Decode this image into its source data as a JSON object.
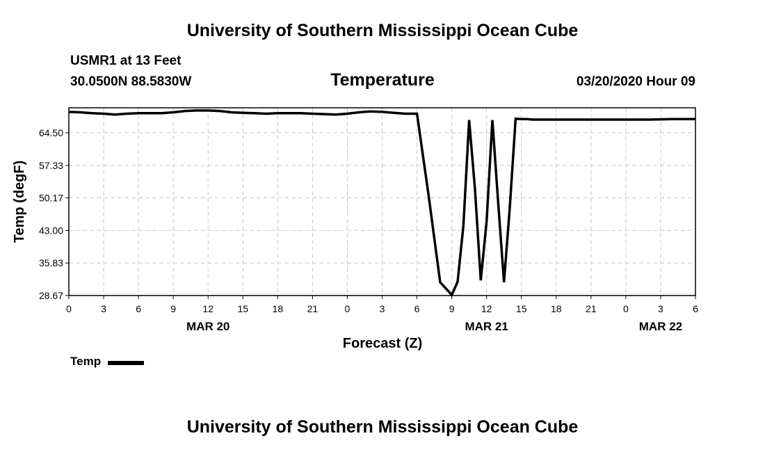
{
  "header": {
    "title": "University of Southern Mississippi Ocean Cube",
    "station": "USMR1 at 13 Feet",
    "coords": "30.0500N 88.5830W",
    "variable": "Temperature",
    "datetime": "03/20/2020 Hour 09"
  },
  "footer": {
    "title": "University of Southern Mississippi Ocean Cube"
  },
  "legend": {
    "label": "Temp"
  },
  "chart_data": {
    "type": "line",
    "ylabel": "Temp (degF)",
    "xlabel": "Forecast (Z)",
    "ylim": [
      28.67,
      70.0
    ],
    "yticks": [
      "28.67",
      "35.83",
      "43.00",
      "50.17",
      "57.33",
      "64.50"
    ],
    "xlim": [
      0,
      54
    ],
    "xtick_labels": [
      "0",
      "3",
      "6",
      "9",
      "12",
      "15",
      "18",
      "21",
      "0",
      "3",
      "6",
      "9",
      "12",
      "15",
      "18",
      "21",
      "0",
      "3",
      "6"
    ],
    "date_labels": [
      {
        "label": "MAR 20",
        "hour": 12
      },
      {
        "label": "MAR 21",
        "hour": 36
      },
      {
        "label": "MAR 22",
        "hour": 51
      }
    ],
    "grid": true,
    "legend_position": "bottom-left",
    "series": [
      {
        "name": "Temp",
        "color": "#000000",
        "x": [
          0,
          1,
          2,
          3,
          4,
          5,
          6,
          7,
          8,
          9,
          10,
          11,
          12,
          13,
          14,
          15,
          16,
          17,
          18,
          19,
          20,
          21,
          22,
          23,
          24,
          25,
          26,
          27,
          28,
          29,
          30,
          31,
          32,
          33,
          33.5,
          34,
          34.5,
          35,
          35.5,
          36,
          36.5,
          37,
          37.5,
          38,
          38.5,
          39,
          39.5,
          40,
          41,
          42,
          44,
          46,
          48,
          50,
          52,
          54
        ],
        "y": [
          69.1,
          69.0,
          68.8,
          68.7,
          68.5,
          68.7,
          68.8,
          68.8,
          68.8,
          69.0,
          69.3,
          69.4,
          69.4,
          69.3,
          69.0,
          68.9,
          68.8,
          68.7,
          68.8,
          68.8,
          68.8,
          68.7,
          68.6,
          68.5,
          68.7,
          69.0,
          69.2,
          69.1,
          68.9,
          68.7,
          68.7,
          50.8,
          31.6,
          28.8,
          31.7,
          44.0,
          67.3,
          52.0,
          32.0,
          45.0,
          67.3,
          49.0,
          31.6,
          48.0,
          67.6,
          67.5,
          67.5,
          67.4,
          67.4,
          67.4,
          67.4,
          67.4,
          67.4,
          67.4,
          67.5,
          67.5
        ]
      }
    ]
  }
}
